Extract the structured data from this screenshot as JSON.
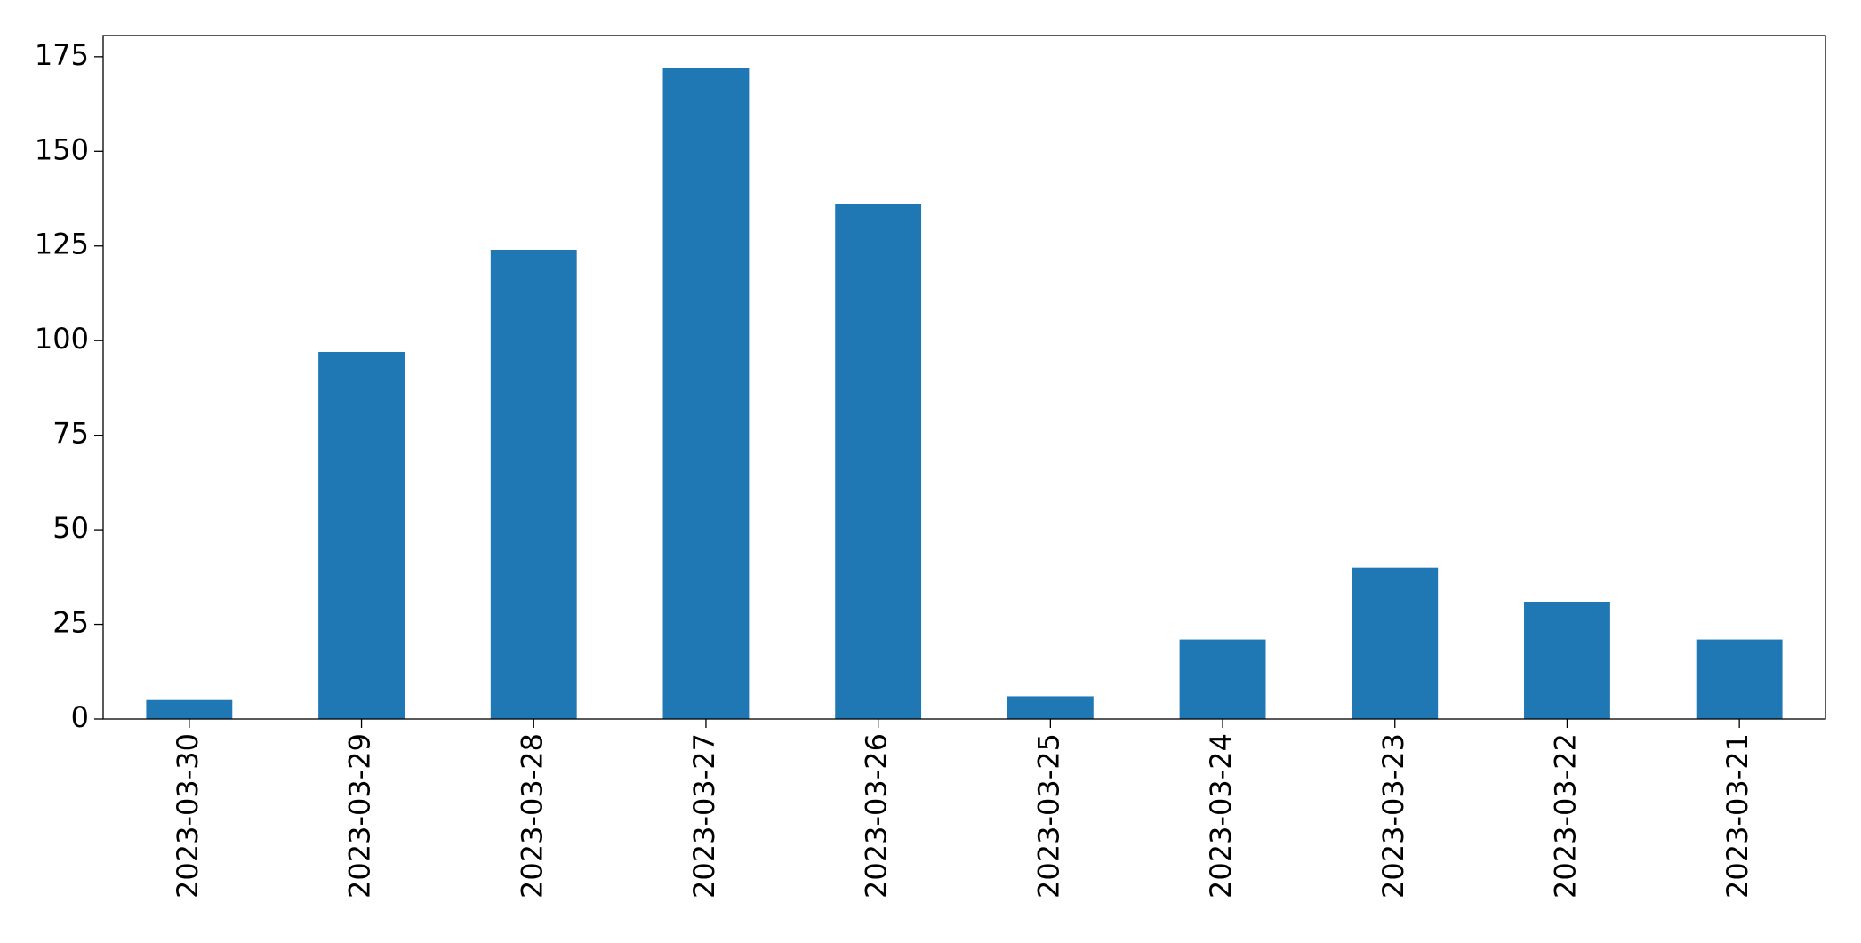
{
  "chart_data": {
    "type": "bar",
    "categories": [
      "2023-03-30",
      "2023-03-29",
      "2023-03-28",
      "2023-03-27",
      "2023-03-26",
      "2023-03-25",
      "2023-03-24",
      "2023-03-23",
      "2023-03-22",
      "2023-03-21"
    ],
    "values": [
      5,
      97,
      124,
      172,
      136,
      6,
      21,
      40,
      31,
      21
    ],
    "color": "#1f77b4",
    "ylim": [
      0,
      180.6
    ],
    "yticks": [
      0,
      25,
      50,
      75,
      100,
      125,
      150,
      175
    ],
    "grid": false
  }
}
